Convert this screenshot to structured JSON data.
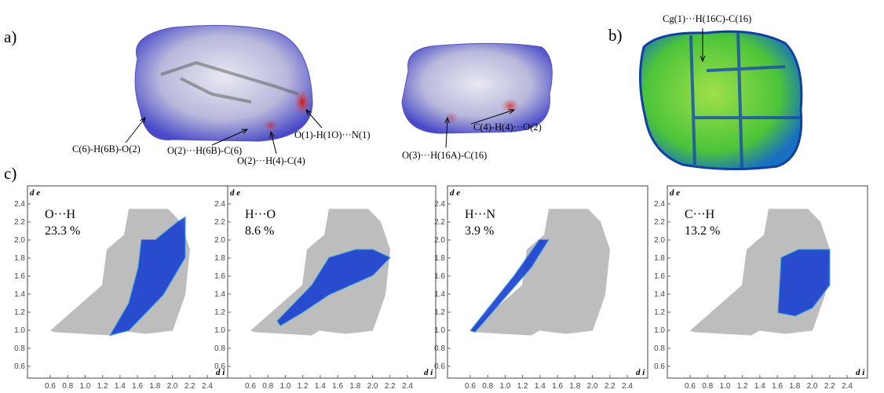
{
  "panel_labels": {
    "a": "a)",
    "b": "b)",
    "c": "c)"
  },
  "panel_a": {
    "annotations": [
      "C(6)-H(6B)-O(2)",
      "O(2)···H(6B)-C(6)",
      "O(2)···H(4)-C(4)",
      "O(1)-H(1O)···N(1)",
      "O(3)···H(16A)-C(16)",
      "C(4)-H(4)···O(2)"
    ]
  },
  "panel_b": {
    "annotation": "Cg(1)···H(16C)-C(16)"
  },
  "fingerprints": {
    "xlabel": "d i",
    "ylabel": "d e",
    "xticks": [
      0.6,
      0.8,
      {
        "value": 1,
        "label": "1.0"
      },
      1.2,
      1.4,
      1.6,
      1.8,
      {
        "value": 2,
        "label": "2.0"
      },
      2.2,
      2.4
    ],
    "yticks": [
      0.6,
      0.8,
      {
        "value": 1,
        "label": "1.0"
      },
      1.2,
      1.4,
      1.6,
      1.8,
      {
        "value": 2,
        "label": "2.0"
      },
      2.2,
      2.4
    ],
    "plots": [
      {
        "contact": "O···H",
        "percent": "23.3 %"
      },
      {
        "contact": "H···O",
        "percent": "8.6 %"
      },
      {
        "contact": "H···N",
        "percent": "3.9 %"
      },
      {
        "contact": "C···H",
        "percent": "13.2 %"
      }
    ]
  }
}
